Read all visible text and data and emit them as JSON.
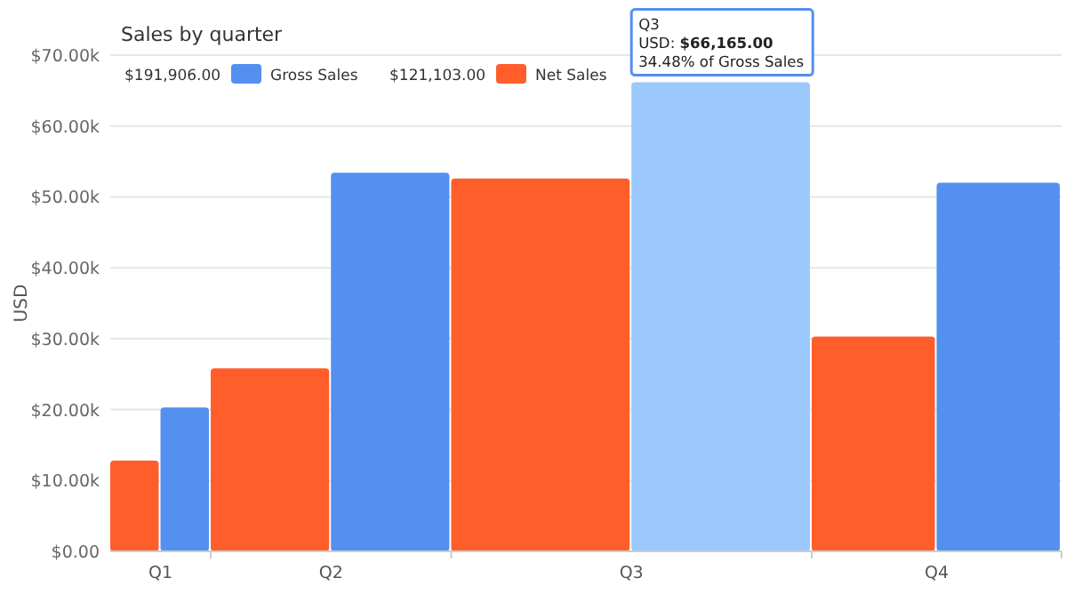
{
  "chart_data": {
    "type": "bar",
    "title": "Sales by quarter",
    "ylabel": "USD",
    "categories": [
      "Q1",
      "Q2",
      "Q3",
      "Q4"
    ],
    "series": [
      {
        "name": "Gross Sales",
        "color": "#5390f0",
        "colors": [
          "#5390f0",
          "#5390f0",
          "#9bc8fd",
          "#5390f0"
        ],
        "values": [
          20300,
          53400,
          66165,
          52000
        ]
      },
      {
        "name": "Net Sales",
        "color": "#ff5e2b",
        "values": [
          12800,
          25800,
          52600,
          30300
        ]
      }
    ],
    "ylim": [
      0,
      70000
    ],
    "yticks": [
      {
        "value": 0,
        "label": "$0.00"
      },
      {
        "value": 10000,
        "label": "$10.00k"
      },
      {
        "value": 20000,
        "label": "$20.00k"
      },
      {
        "value": 30000,
        "label": "$30.00k"
      },
      {
        "value": 40000,
        "label": "$40.00k"
      },
      {
        "value": 50000,
        "label": "$50.00k"
      },
      {
        "value": 60000,
        "label": "$60.00k"
      },
      {
        "value": 70000,
        "label": "$70.00k"
      }
    ],
    "grid": "y",
    "legend": "top left",
    "annotations": [
      "$191,906.00",
      "$121,103.00",
      {
        "text": "Q3\nUSD: $66,165.00\n34.48% of Gross Sales",
        "x": "Q3",
        "y": 66165
      }
    ]
  }
}
